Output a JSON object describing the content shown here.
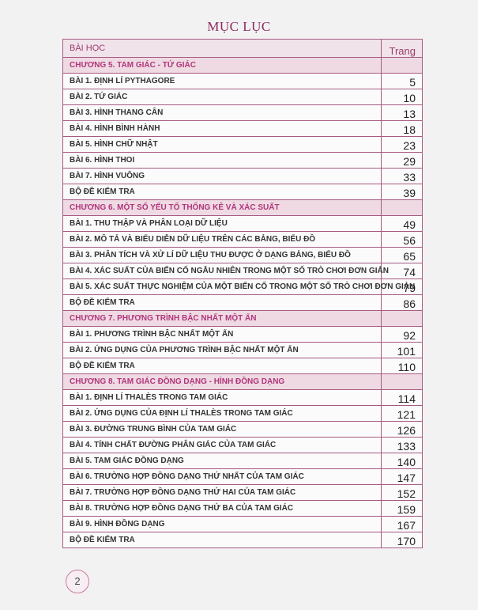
{
  "title": "MỤC LỤC",
  "header": {
    "lesson": "BÀI HỌC",
    "page": "Trang"
  },
  "chapters": [
    {
      "title": "CHƯƠNG 5. TAM GIÁC - TỨ GIÁC",
      "lessons": [
        {
          "name": "BÀI 1. ĐỊNH LÍ PYTHAGORE",
          "page": "5"
        },
        {
          "name": "BÀI 2. TỨ GIÁC",
          "page": "10"
        },
        {
          "name": "BÀI 3. HÌNH THANG CÂN",
          "page": "13"
        },
        {
          "name": "BÀI 4. HÌNH BÌNH HÀNH",
          "page": "18"
        },
        {
          "name": "BÀI 5. HÌNH CHỮ NHẬT",
          "page": "23"
        },
        {
          "name": "BÀI 6. HÌNH THOI",
          "page": "29"
        },
        {
          "name": "BÀI 7. HÌNH VUÔNG",
          "page": "33"
        },
        {
          "name": "BỘ ĐỀ KIỂM TRA",
          "page": "39"
        }
      ]
    },
    {
      "title": "CHƯƠNG 6. MỘT SỐ YẾU TỐ THỐNG KÊ VÀ XÁC SUẤT",
      "lessons": [
        {
          "name": "BÀI 1. THU THẬP VÀ PHÂN LOẠI DỮ LIỆU",
          "page": "49"
        },
        {
          "name": "BÀI 2. MÔ TẢ VÀ BIỂU DIỄN DỮ LIỆU TRÊN CÁC BẢNG, BIỂU ĐỒ",
          "page": "56"
        },
        {
          "name": "BÀI 3. PHÂN TÍCH VÀ XỬ LÍ DỮ LIỆU THU ĐƯỢC Ở DẠNG BẢNG, BIỂU ĐỒ",
          "page": "65"
        },
        {
          "name": "BÀI 4. XÁC SUẤT CỦA BIẾN CỐ NGẪU NHIÊN TRONG MỘT SỐ TRÒ CHƠI ĐƠN GIẢN",
          "page": "74"
        },
        {
          "name": "BÀI 5. XÁC SUẤT THỰC NGHIỆM CỦA MỘT BIẾN CỐ TRONG MỘT SỐ TRÒ CHƠI ĐƠN GIẢN",
          "page": "79"
        },
        {
          "name": "BỘ ĐỀ KIỂM TRA",
          "page": "86"
        }
      ]
    },
    {
      "title": "CHƯƠNG 7. PHƯƠNG TRÌNH BẬC NHẤT MỘT ẨN",
      "lessons": [
        {
          "name": "BÀI 1. PHƯƠNG TRÌNH BẬC NHẤT MỘT ẨN",
          "page": "92"
        },
        {
          "name": "BÀI 2. ỨNG DỤNG CỦA PHƯƠNG TRÌNH BẬC NHẤT MỘT ẨN",
          "page": "101"
        },
        {
          "name": "BỘ ĐỀ KIỂM TRA",
          "page": "110"
        }
      ]
    },
    {
      "title": "CHƯƠNG 8. TAM GIÁC ĐỒNG DẠNG - HÌNH ĐỒNG DẠNG",
      "lessons": [
        {
          "name": "BÀI 1. ĐỊNH LÍ THALÈS TRONG TAM GIÁC",
          "page": "114"
        },
        {
          "name": "BÀI 2. ỨNG DỤNG CỦA ĐỊNH LÍ THALÈS TRONG TAM GIÁC",
          "page": "121"
        },
        {
          "name": "BÀI 3. ĐƯỜNG TRUNG BÌNH CỦA TAM GIÁC",
          "page": "126"
        },
        {
          "name": "BÀI 4. TÍNH CHẤT ĐƯỜNG PHÂN GIÁC CỦA TAM GIÁC",
          "page": "133"
        },
        {
          "name": "BÀI 5. TAM GIÁC ĐỒNG DẠNG",
          "page": "140"
        },
        {
          "name": "BÀI 6. TRƯỜNG HỢP ĐỒNG DẠNG THỨ NHẤT CỦA TAM GIÁC",
          "page": "147"
        },
        {
          "name": "BÀI 7. TRƯỜNG HỢP ĐỒNG DẠNG THỨ HAI CỦA TAM GIÁC",
          "page": "152"
        },
        {
          "name": "BÀI 8. TRƯỜNG HỢP ĐỒNG DẠNG THỨ BA CỦA TAM GIÁC",
          "page": "159"
        },
        {
          "name": "BÀI 9. HÌNH ĐỒNG DẠNG",
          "page": "167"
        },
        {
          "name": "BỘ ĐỀ KIỂM TRA",
          "page": "170"
        }
      ]
    }
  ],
  "page_number": "2",
  "colors": {
    "accent": "#a65a82",
    "chapter_bg": "#efdae3",
    "chapter_text": "#b0357a"
  }
}
